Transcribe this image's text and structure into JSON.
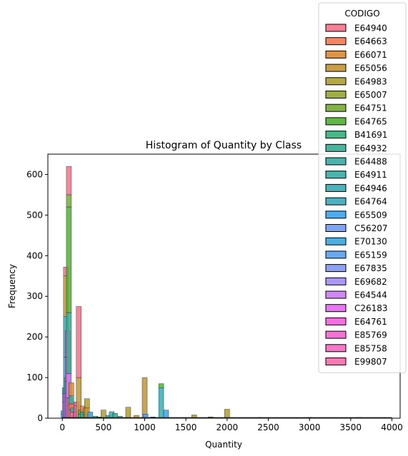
{
  "chart_data": {
    "type": "bar",
    "title": "Histogram of Quantity by Class",
    "xlabel": "Quantity",
    "ylabel": "Frequency",
    "xlim": [
      -175,
      4100
    ],
    "ylim": [
      0,
      650
    ],
    "x_ticks": [
      "0",
      "500",
      "1000",
      "1500",
      "2000",
      "2500",
      "3000",
      "3500",
      "4000"
    ],
    "y_ticks": [
      "0",
      "100",
      "200",
      "300",
      "400",
      "500",
      "600"
    ],
    "stacked": true,
    "legend": {
      "title": "CODIGO",
      "placement": "top-right",
      "entries": [
        {
          "name": "E64940",
          "color": "#f77189"
        },
        {
          "name": "E64663",
          "color": "#f7754f"
        },
        {
          "name": "E66071",
          "color": "#dc8932"
        },
        {
          "name": "E65056",
          "color": "#c39532"
        },
        {
          "name": "E64983",
          "color": "#ae9d31"
        },
        {
          "name": "E65007",
          "color": "#97a431"
        },
        {
          "name": "E64751",
          "color": "#77ab31"
        },
        {
          "name": "E64765",
          "color": "#50b131"
        },
        {
          "name": "B41691",
          "color": "#33b07a"
        },
        {
          "name": "E64932",
          "color": "#34ae91"
        },
        {
          "name": "E64488",
          "color": "#35aca4"
        },
        {
          "name": "E64911",
          "color": "#36ada4"
        },
        {
          "name": "E64946",
          "color": "#37abb4"
        },
        {
          "name": "E64764",
          "color": "#38aaba"
        },
        {
          "name": "E65509",
          "color": "#3ba3ec"
        },
        {
          "name": "C56207",
          "color": "#6e9bf4"
        },
        {
          "name": "E70130",
          "color": "#3aa5df"
        },
        {
          "name": "E65159",
          "color": "#58a0f0"
        },
        {
          "name": "E67835",
          "color": "#8197f4"
        },
        {
          "name": "E69682",
          "color": "#a38cf4"
        },
        {
          "name": "E64544",
          "color": "#cc7af4"
        },
        {
          "name": "C26183",
          "color": "#e866f4"
        },
        {
          "name": "E64761",
          "color": "#f45fdd"
        },
        {
          "name": "E85769",
          "color": "#f563d3"
        },
        {
          "name": "E85758",
          "color": "#f668c2"
        },
        {
          "name": "E99807",
          "color": "#f66bad"
        }
      ]
    },
    "bins": [
      {
        "x": 15,
        "segments": [
          {
            "series": "E65509",
            "value": 10
          },
          {
            "series": "E64911",
            "value": 8
          }
        ]
      },
      {
        "x": 30,
        "segments": [
          {
            "series": "E64544",
            "value": 40
          },
          {
            "series": "E69682",
            "value": 20
          },
          {
            "series": "E64946",
            "value": 15
          }
        ]
      },
      {
        "x": 45,
        "segments": [
          {
            "series": "E65509",
            "value": 150
          },
          {
            "series": "E64946",
            "value": 100
          },
          {
            "series": "E65056",
            "value": 100
          },
          {
            "series": "E64940",
            "value": 22
          }
        ]
      },
      {
        "x": 55,
        "segments": [
          {
            "series": "E64544",
            "value": 60
          },
          {
            "series": "E64932",
            "value": 40
          }
        ]
      },
      {
        "x": 65,
        "segments": [
          {
            "series": "E64544",
            "value": 90
          },
          {
            "series": "E99807",
            "value": 60
          },
          {
            "series": "E64761",
            "value": 65
          }
        ]
      },
      {
        "x": 80,
        "segments": [
          {
            "series": "E64940",
            "value": 50
          },
          {
            "series": "E64544",
            "value": 60
          },
          {
            "series": "E64932",
            "value": 150
          },
          {
            "series": "E64765",
            "value": 260
          },
          {
            "series": "E64751",
            "value": 30
          },
          {
            "series": "E64940",
            "value": 70
          }
        ]
      },
      {
        "x": 95,
        "segments": [
          {
            "series": "E64761",
            "value": 30
          },
          {
            "series": "E99807",
            "value": 20
          }
        ]
      },
      {
        "x": 110,
        "segments": [
          {
            "series": "E64940",
            "value": 20
          },
          {
            "series": "E64663",
            "value": 15
          },
          {
            "series": "E64932",
            "value": 20
          },
          {
            "series": "E66071",
            "value": 32
          }
        ]
      },
      {
        "x": 130,
        "segments": [
          {
            "series": "E64940",
            "value": 15
          },
          {
            "series": "E64932",
            "value": 10
          }
        ]
      },
      {
        "x": 160,
        "segments": [
          {
            "series": "E99807",
            "value": 15
          }
        ]
      },
      {
        "x": 175,
        "segments": [
          {
            "series": "E85758",
            "value": 30
          },
          {
            "series": "E64761",
            "value": 10
          }
        ]
      },
      {
        "x": 200,
        "segments": [
          {
            "series": "E65056",
            "value": 100
          },
          {
            "series": "E64940",
            "value": 175
          }
        ]
      },
      {
        "x": 225,
        "segments": [
          {
            "series": "E64932",
            "value": 10
          },
          {
            "series": "E64765",
            "value": 10
          }
        ]
      },
      {
        "x": 250,
        "segments": [
          {
            "series": "E64932",
            "value": 15
          },
          {
            "series": "E64663",
            "value": 15
          }
        ]
      },
      {
        "x": 285,
        "segments": [
          {
            "series": "E64932",
            "value": 10
          },
          {
            "series": "E65056",
            "value": 15
          }
        ]
      },
      {
        "x": 300,
        "segments": [
          {
            "series": "E65056",
            "value": 25
          },
          {
            "series": "E64983",
            "value": 23
          }
        ]
      },
      {
        "x": 340,
        "segments": [
          {
            "series": "E70130",
            "value": 15
          }
        ]
      },
      {
        "x": 400,
        "segments": [
          {
            "series": "E64946",
            "value": 5
          }
        ]
      },
      {
        "x": 450,
        "segments": [
          {
            "series": "E64932",
            "value": 3
          }
        ]
      },
      {
        "x": 500,
        "segments": [
          {
            "series": "E64983",
            "value": 20
          }
        ]
      },
      {
        "x": 560,
        "segments": [
          {
            "series": "E64932",
            "value": 7
          }
        ]
      },
      {
        "x": 600,
        "segments": [
          {
            "series": "E64946",
            "value": 16
          }
        ]
      },
      {
        "x": 640,
        "segments": [
          {
            "series": "E64932",
            "value": 12
          }
        ]
      },
      {
        "x": 700,
        "segments": [
          {
            "series": "E64946",
            "value": 5
          }
        ]
      },
      {
        "x": 800,
        "segments": [
          {
            "series": "E64983",
            "value": 27
          }
        ]
      },
      {
        "x": 900,
        "segments": [
          {
            "series": "E65056",
            "value": 7
          }
        ]
      },
      {
        "x": 1000,
        "segments": [
          {
            "series": "E65056",
            "value": 100
          }
        ]
      },
      {
        "x": 1010,
        "segments": [
          {
            "series": "E65159",
            "value": 10
          }
        ]
      },
      {
        "x": 1100,
        "segments": [
          {
            "series": "E65509",
            "value": 3
          }
        ]
      },
      {
        "x": 1200,
        "segments": [
          {
            "series": "E64946",
            "value": 75
          },
          {
            "series": "E64765",
            "value": 10
          }
        ]
      },
      {
        "x": 1260,
        "segments": [
          {
            "series": "E65509",
            "value": 20
          }
        ]
      },
      {
        "x": 1600,
        "segments": [
          {
            "series": "E64983",
            "value": 8
          }
        ]
      },
      {
        "x": 1800,
        "segments": [
          {
            "series": "E65056",
            "value": 3
          }
        ]
      },
      {
        "x": 2000,
        "segments": [
          {
            "series": "E64983",
            "value": 22
          }
        ]
      },
      {
        "x": 2400,
        "segments": [
          {
            "series": "E64946",
            "value": 2
          }
        ]
      },
      {
        "x": 2500,
        "segments": [
          {
            "series": "E64946",
            "value": 1
          }
        ]
      },
      {
        "x": 3000,
        "segments": [
          {
            "series": "E64946",
            "value": 2
          }
        ]
      },
      {
        "x": 3600,
        "segments": [
          {
            "series": "E64946",
            "value": 2
          }
        ]
      }
    ]
  }
}
